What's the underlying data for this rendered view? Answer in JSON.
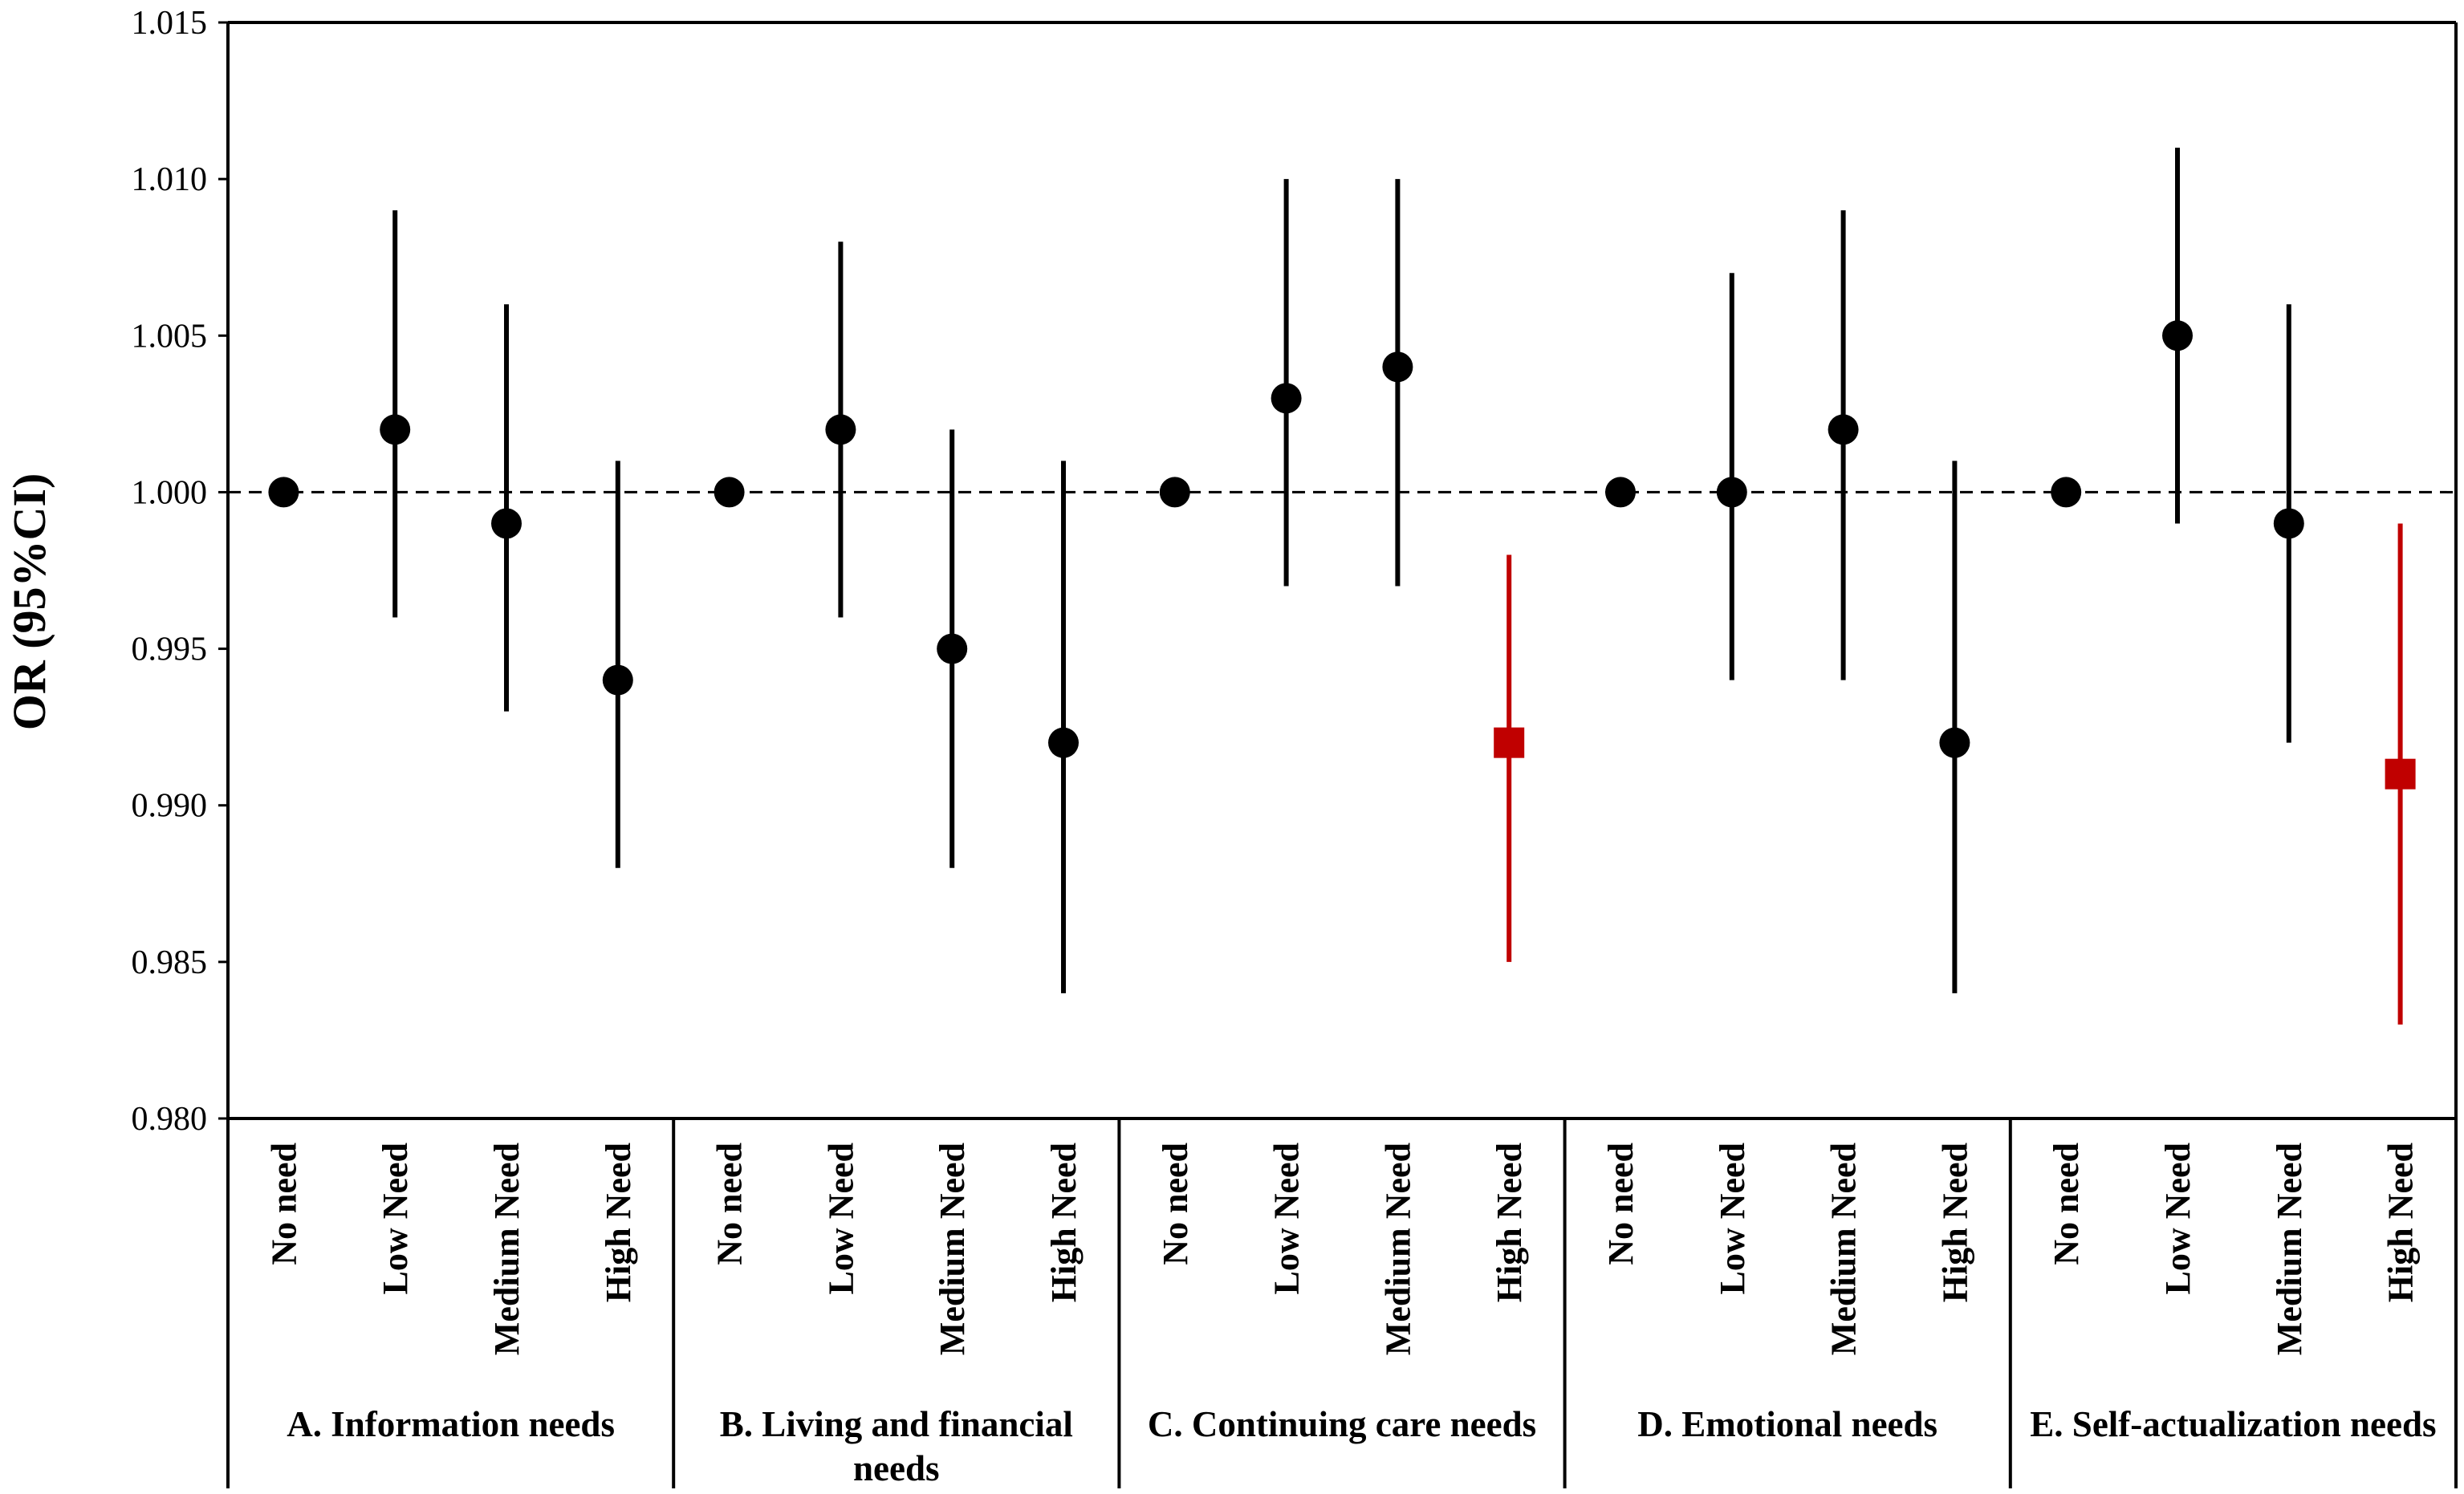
{
  "chart_data": {
    "type": "forest",
    "title": "",
    "ylabel": "OR (95%CI)",
    "xlabel": "",
    "ylim": [
      0.98,
      1.015
    ],
    "yticks": [
      "0.980",
      "0.985",
      "0.990",
      "0.995",
      "1.000",
      "1.005",
      "1.010",
      "1.015"
    ],
    "yticks_values": [
      0.98,
      0.985,
      0.99,
      0.995,
      1.0,
      1.005,
      1.01,
      1.015
    ],
    "reference_line": 1.0,
    "colors": {
      "default": "#000000",
      "highlight": "#c00000"
    },
    "groups": [
      {
        "label_lines": [
          "A. Information needs"
        ],
        "points": [
          {
            "category": "No need",
            "or": 1.0,
            "lower": null,
            "upper": null,
            "highlight": false
          },
          {
            "category": "Low Need",
            "or": 1.002,
            "lower": 0.996,
            "upper": 1.009,
            "highlight": false
          },
          {
            "category": "Medium Need",
            "or": 0.999,
            "lower": 0.993,
            "upper": 1.006,
            "highlight": false
          },
          {
            "category": "High Need",
            "or": 0.994,
            "lower": 0.988,
            "upper": 1.001,
            "highlight": false
          }
        ]
      },
      {
        "label_lines": [
          "B. Living and financial",
          "needs"
        ],
        "points": [
          {
            "category": "No need",
            "or": 1.0,
            "lower": null,
            "upper": null,
            "highlight": false
          },
          {
            "category": "Low Need",
            "or": 1.002,
            "lower": 0.996,
            "upper": 1.008,
            "highlight": false
          },
          {
            "category": "Medium Need",
            "or": 0.995,
            "lower": 0.988,
            "upper": 1.002,
            "highlight": false
          },
          {
            "category": "High Need",
            "or": 0.992,
            "lower": 0.984,
            "upper": 1.001,
            "highlight": false
          }
        ]
      },
      {
        "label_lines": [
          "C. Continuing care needs"
        ],
        "points": [
          {
            "category": "No need",
            "or": 1.0,
            "lower": null,
            "upper": null,
            "highlight": false
          },
          {
            "category": "Low Need",
            "or": 1.003,
            "lower": 0.997,
            "upper": 1.01,
            "highlight": false
          },
          {
            "category": "Medium Need",
            "or": 1.004,
            "lower": 0.997,
            "upper": 1.01,
            "highlight": false
          },
          {
            "category": "High Need",
            "or": 0.992,
            "lower": 0.985,
            "upper": 0.998,
            "highlight": true
          }
        ]
      },
      {
        "label_lines": [
          "D. Emotional needs"
        ],
        "points": [
          {
            "category": "No need",
            "or": 1.0,
            "lower": null,
            "upper": null,
            "highlight": false
          },
          {
            "category": "Low Need",
            "or": 1.0,
            "lower": 0.994,
            "upper": 1.007,
            "highlight": false
          },
          {
            "category": "Medium Need",
            "or": 1.002,
            "lower": 0.994,
            "upper": 1.009,
            "highlight": false
          },
          {
            "category": "High Need",
            "or": 0.992,
            "lower": 0.984,
            "upper": 1.001,
            "highlight": false
          }
        ]
      },
      {
        "label_lines": [
          "E. Self-actualization needs"
        ],
        "points": [
          {
            "category": "No need",
            "or": 1.0,
            "lower": null,
            "upper": null,
            "highlight": false
          },
          {
            "category": "Low Need",
            "or": 1.005,
            "lower": 0.999,
            "upper": 1.011,
            "highlight": false
          },
          {
            "category": "Medium Need",
            "or": 0.999,
            "lower": 0.992,
            "upper": 1.006,
            "highlight": false
          },
          {
            "category": "High Need",
            "or": 0.991,
            "lower": 0.983,
            "upper": 0.999,
            "highlight": true
          }
        ]
      }
    ]
  }
}
